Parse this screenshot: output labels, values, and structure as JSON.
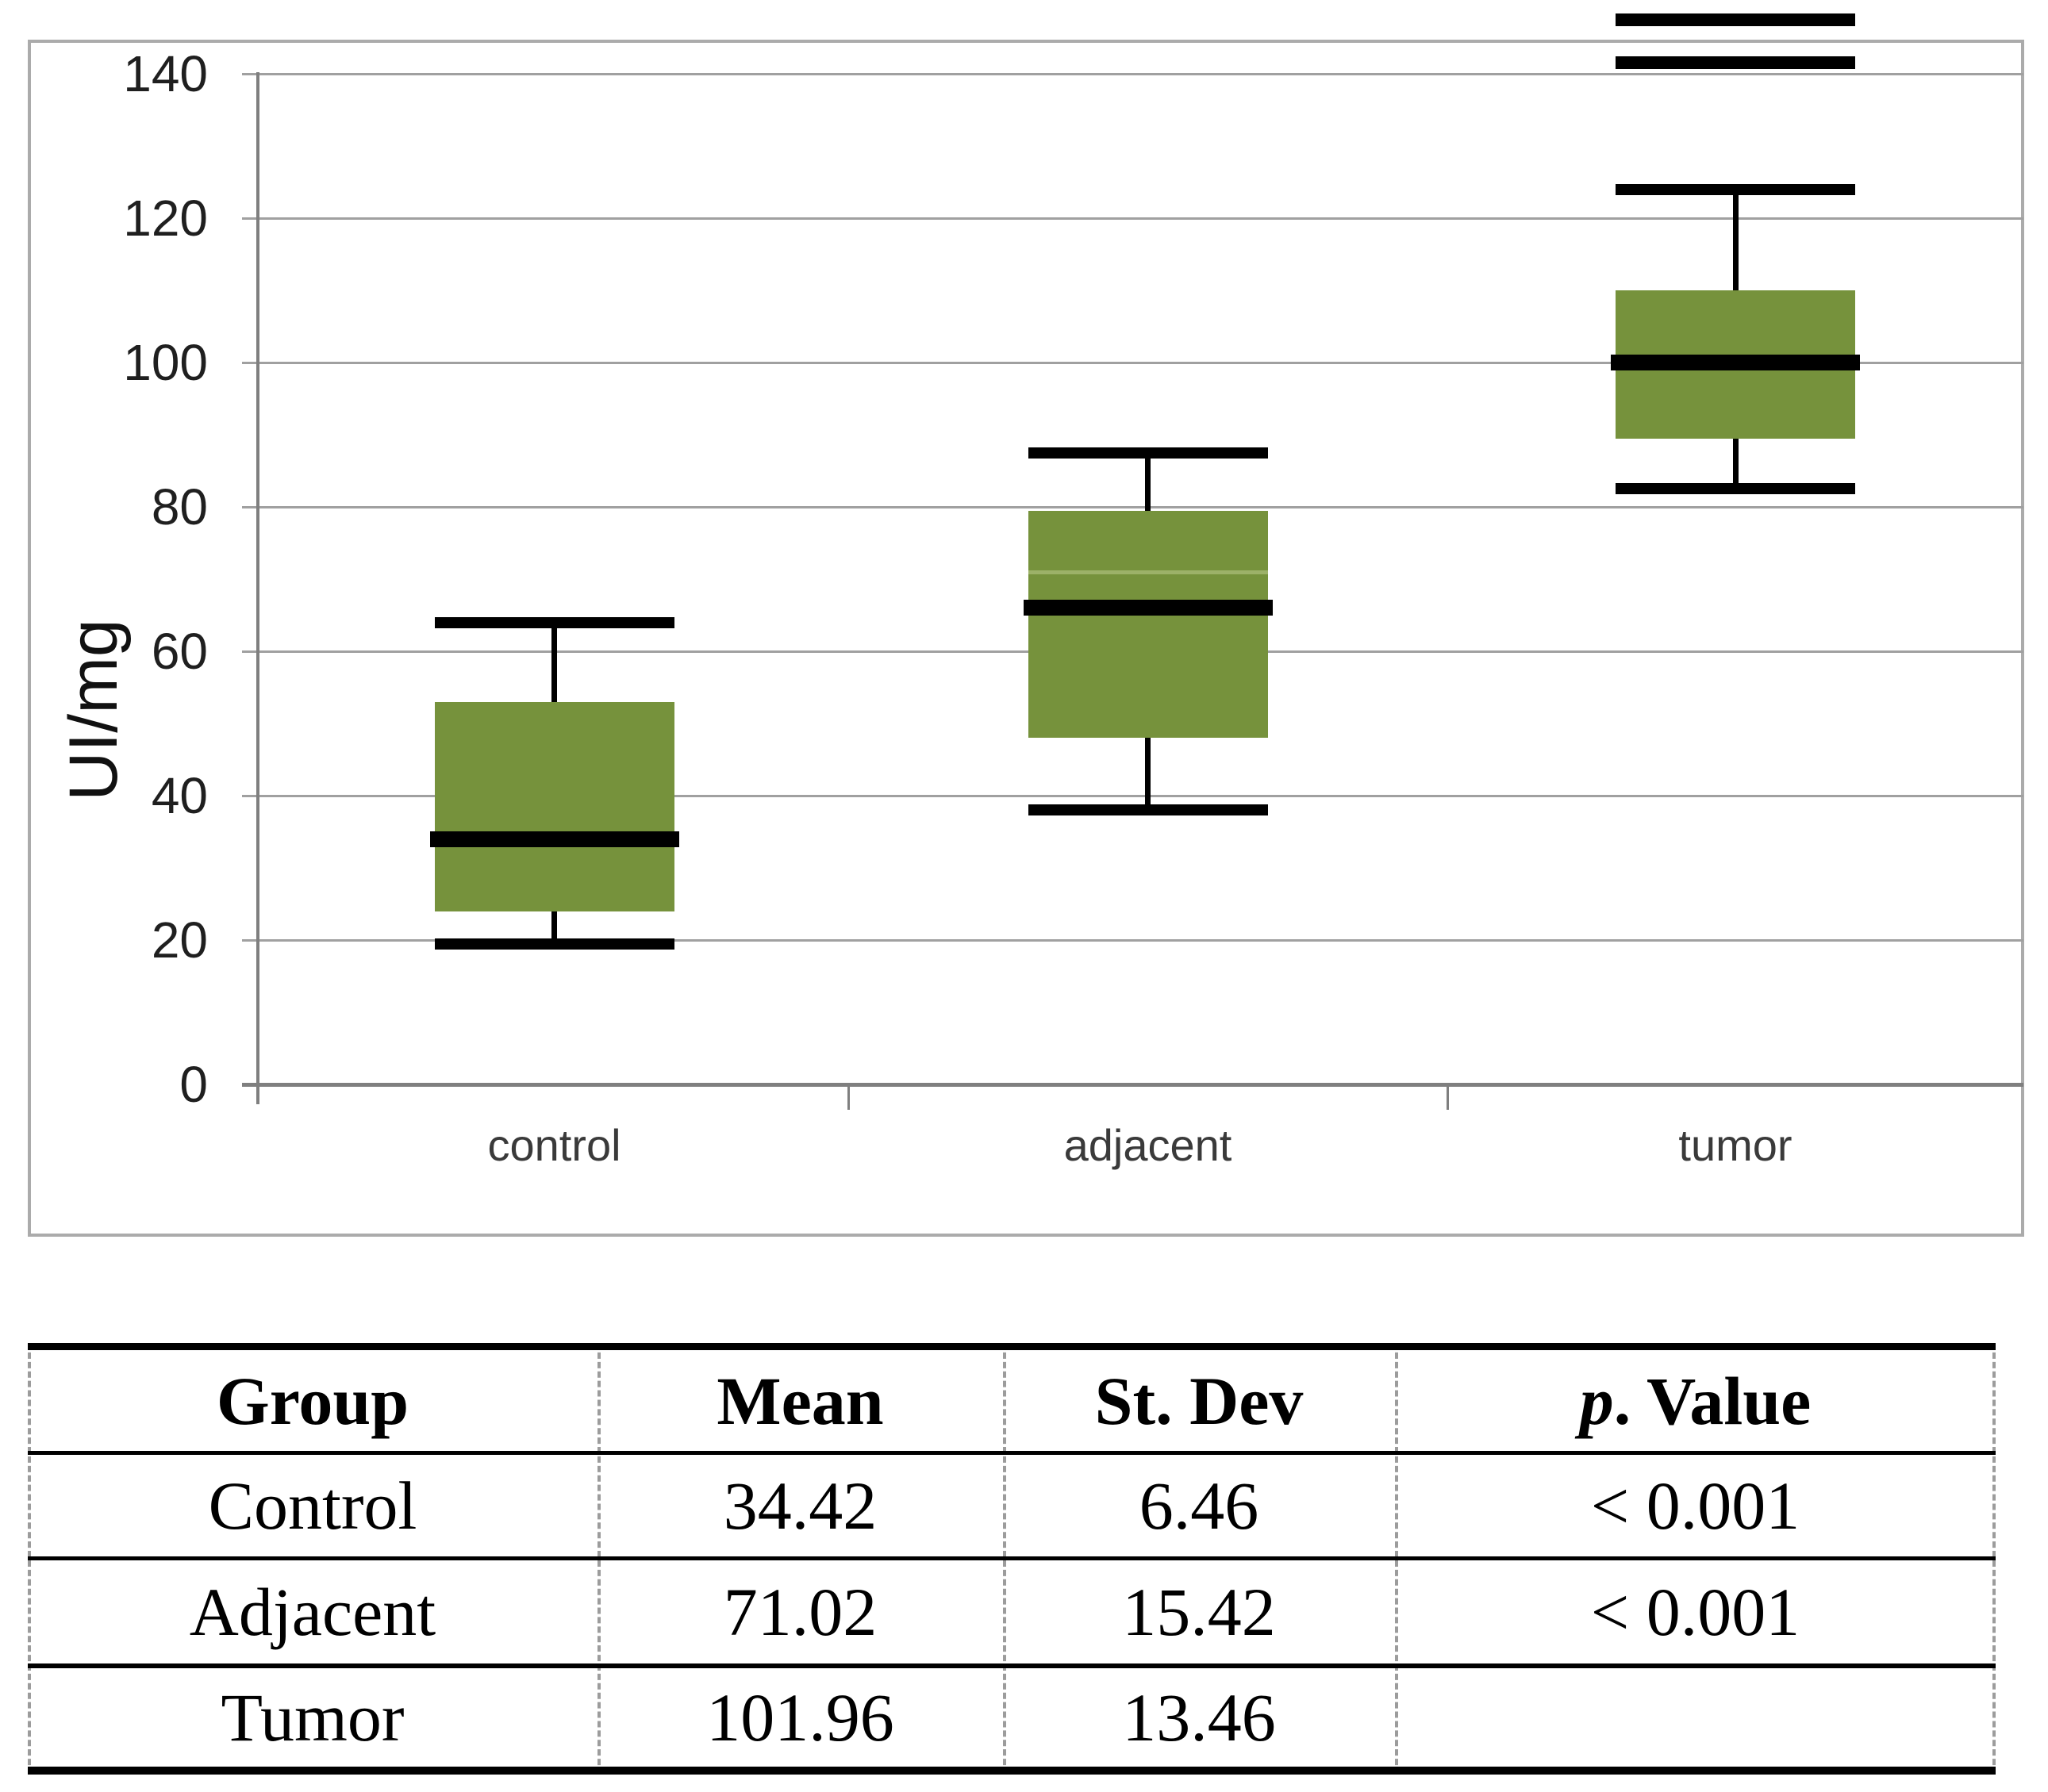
{
  "chart_data": {
    "type": "boxplot",
    "title": "",
    "ylabel": "UI/mg",
    "xlabel": "",
    "ylim": [
      0,
      140
    ],
    "yticks": [
      0,
      20,
      40,
      60,
      80,
      100,
      120,
      140
    ],
    "grid": true,
    "categories": [
      "control",
      "adjacent",
      "tumor"
    ],
    "series": [
      {
        "name": "control",
        "whisker_low": 19.5,
        "q1": 24,
        "median": 34,
        "q3": 53,
        "whisker_high": 64,
        "mean_line": null,
        "outliers": []
      },
      {
        "name": "adjacent",
        "whisker_low": 38,
        "q1": 48,
        "median": 66,
        "q3": 79.5,
        "whisker_high": 87.5,
        "mean_line": 71,
        "outliers": []
      },
      {
        "name": "tumor",
        "whisker_low": 82.5,
        "q1": 89.5,
        "median": 100,
        "q3": 110,
        "whisker_high": 124,
        "mean_line": null,
        "outliers": [
          141.5,
          147.5
        ]
      }
    ],
    "colors": {
      "box": "#76923C",
      "mean_line": "#9CB168",
      "grid": "#A0A0A0",
      "axis": "#7F7F7F",
      "frame": "#ABABAB",
      "tick_text": "#1F1F1F",
      "category_text": "#3A3A3A",
      "box_lines": "#000000"
    }
  },
  "table": {
    "columns": [
      "Group",
      "Mean",
      "St. Dev",
      "p. Value"
    ],
    "rows": [
      [
        "Control",
        "34.42",
        "6.46",
        "< 0.001"
      ],
      [
        "Adjacent",
        "71.02",
        "15.42",
        "< 0.001"
      ],
      [
        "Tumor",
        "101.96",
        "13.46",
        ""
      ]
    ]
  }
}
